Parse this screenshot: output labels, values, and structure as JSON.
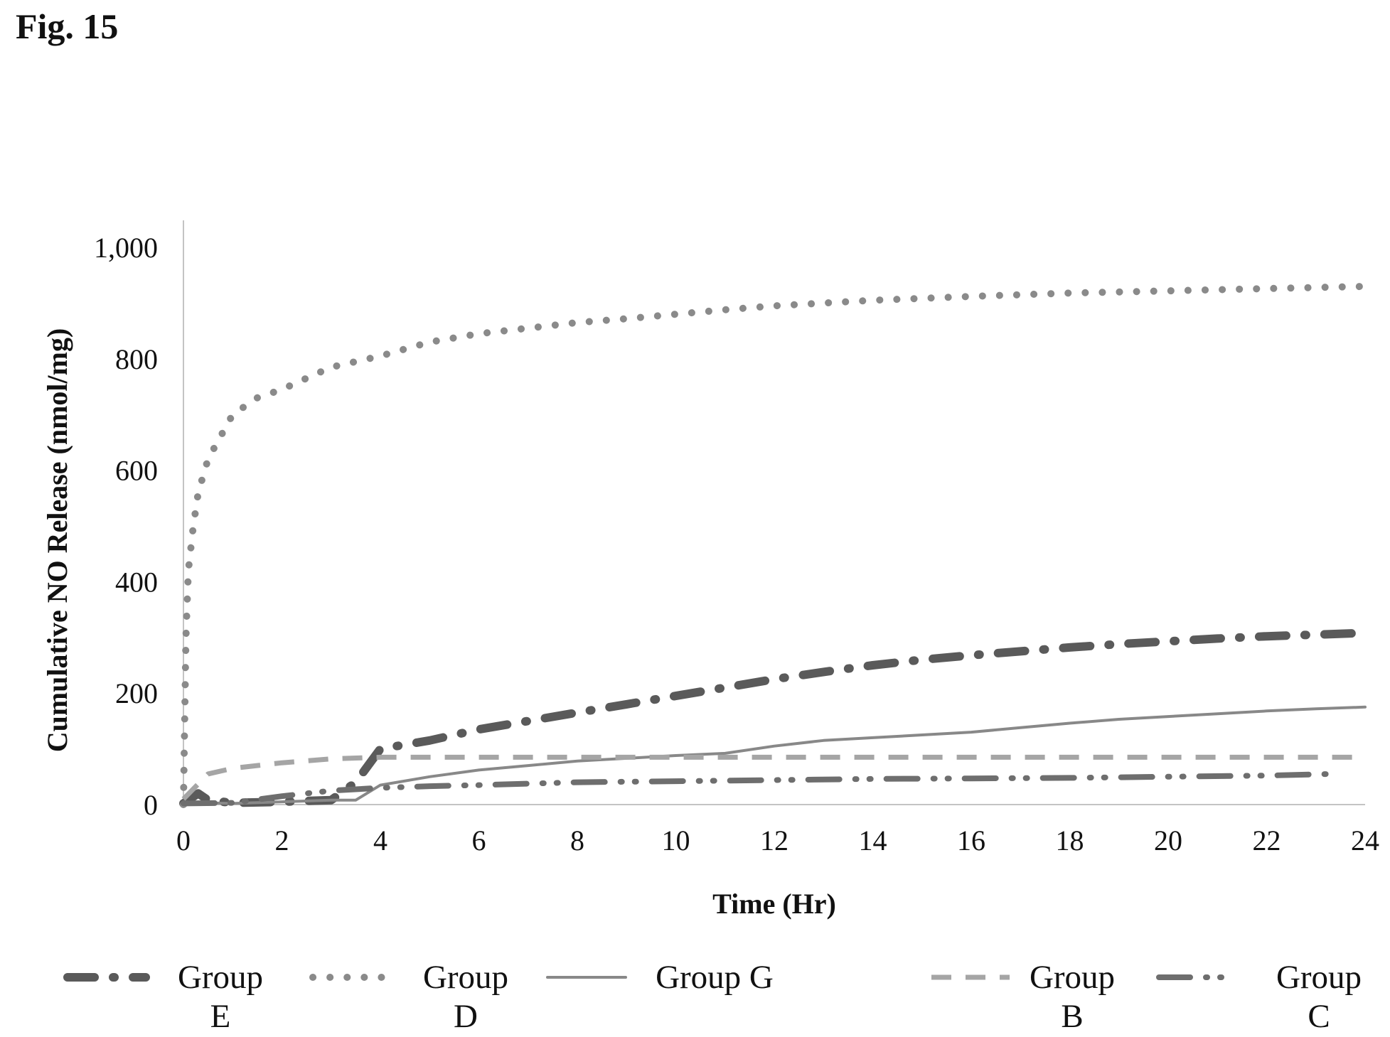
{
  "figure_label": "Fig. 15",
  "chart_data": {
    "type": "line",
    "xlabel": "Time (Hr)",
    "ylabel": "Cumulative NO Release (nmol/mg)",
    "xlim": [
      0,
      24
    ],
    "ylim": [
      0,
      1000
    ],
    "x_ticks": [
      "0",
      "2",
      "4",
      "6",
      "8",
      "10",
      "12",
      "14",
      "16",
      "18",
      "20",
      "22",
      "24"
    ],
    "y_ticks": [
      "0",
      "200",
      "400",
      "600",
      "800",
      "1,000"
    ],
    "grid": false,
    "legend_position": "bottom",
    "series": [
      {
        "name": "Group E",
        "legend_lines": [
          "Group",
          "E"
        ],
        "style": "long-dash-dot-heavy",
        "color": "#5a5a5a",
        "points": [
          [
            0,
            2
          ],
          [
            0.3,
            20
          ],
          [
            0.5,
            8
          ],
          [
            1,
            3
          ],
          [
            2,
            5
          ],
          [
            3,
            8
          ],
          [
            3.5,
            40
          ],
          [
            4,
            100
          ],
          [
            5,
            115
          ],
          [
            6,
            135
          ],
          [
            7,
            150
          ],
          [
            8,
            165
          ],
          [
            9,
            180
          ],
          [
            10,
            195
          ],
          [
            11,
            210
          ],
          [
            12,
            225
          ],
          [
            13,
            238
          ],
          [
            14,
            250
          ],
          [
            15,
            260
          ],
          [
            16,
            268
          ],
          [
            17,
            275
          ],
          [
            18,
            282
          ],
          [
            19,
            288
          ],
          [
            20,
            293
          ],
          [
            21,
            298
          ],
          [
            22,
            302
          ],
          [
            23,
            305
          ],
          [
            24,
            308
          ]
        ]
      },
      {
        "name": "Group D",
        "legend_lines": [
          "Group",
          "D"
        ],
        "style": "dotted",
        "color": "#8a8a8a",
        "points": [
          [
            0,
            0
          ],
          [
            0.05,
            300
          ],
          [
            0.1,
            420
          ],
          [
            0.2,
            500
          ],
          [
            0.3,
            560
          ],
          [
            0.5,
            620
          ],
          [
            0.75,
            660
          ],
          [
            1,
            700
          ],
          [
            1.5,
            730
          ],
          [
            2,
            745
          ],
          [
            2.5,
            765
          ],
          [
            3,
            785
          ],
          [
            4,
            805
          ],
          [
            5,
            830
          ],
          [
            6,
            845
          ],
          [
            7,
            855
          ],
          [
            8,
            865
          ],
          [
            9,
            872
          ],
          [
            10,
            880
          ],
          [
            11,
            888
          ],
          [
            12,
            895
          ],
          [
            13,
            900
          ],
          [
            14,
            905
          ],
          [
            16,
            912
          ],
          [
            18,
            918
          ],
          [
            20,
            922
          ],
          [
            22,
            926
          ],
          [
            24,
            930
          ]
        ]
      },
      {
        "name": "Group G",
        "legend_lines": [
          "Group G"
        ],
        "style": "solid",
        "color": "#888888",
        "points": [
          [
            0,
            5
          ],
          [
            0.5,
            3
          ],
          [
            1,
            2
          ],
          [
            2,
            5
          ],
          [
            3,
            8
          ],
          [
            3.5,
            8
          ],
          [
            4,
            35
          ],
          [
            5,
            50
          ],
          [
            6,
            62
          ],
          [
            7,
            70
          ],
          [
            8,
            78
          ],
          [
            9,
            83
          ],
          [
            10,
            88
          ],
          [
            11,
            92
          ],
          [
            12,
            105
          ],
          [
            13,
            115
          ],
          [
            14,
            120
          ],
          [
            15,
            125
          ],
          [
            16,
            130
          ],
          [
            17,
            138
          ],
          [
            18,
            146
          ],
          [
            19,
            153
          ],
          [
            20,
            158
          ],
          [
            21,
            163
          ],
          [
            22,
            168
          ],
          [
            23,
            172
          ],
          [
            24,
            175
          ]
        ]
      },
      {
        "name": "Group B",
        "legend_lines": [
          "Group",
          "B"
        ],
        "style": "dashed",
        "color": "#a5a5a5",
        "points": [
          [
            0,
            10
          ],
          [
            0.5,
            55
          ],
          [
            1,
            65
          ],
          [
            2,
            75
          ],
          [
            3,
            82
          ],
          [
            4,
            85
          ],
          [
            6,
            85
          ],
          [
            8,
            85
          ],
          [
            10,
            85
          ],
          [
            12,
            85
          ],
          [
            14,
            85
          ],
          [
            16,
            85
          ],
          [
            18,
            85
          ],
          [
            20,
            85
          ],
          [
            22,
            85
          ],
          [
            24,
            85
          ]
        ]
      },
      {
        "name": "Group C",
        "legend_lines": [
          "Group",
          "C"
        ],
        "style": "long-dash-dot-dot",
        "color": "#6e6e6e",
        "points": [
          [
            0,
            2
          ],
          [
            1,
            3
          ],
          [
            2,
            15
          ],
          [
            3,
            25
          ],
          [
            4,
            30
          ],
          [
            5,
            33
          ],
          [
            6,
            35
          ],
          [
            8,
            40
          ],
          [
            10,
            42
          ],
          [
            12,
            44
          ],
          [
            14,
            46
          ],
          [
            16,
            47
          ],
          [
            18,
            48
          ],
          [
            20,
            50
          ],
          [
            22,
            52
          ],
          [
            23.3,
            55
          ]
        ]
      }
    ]
  }
}
